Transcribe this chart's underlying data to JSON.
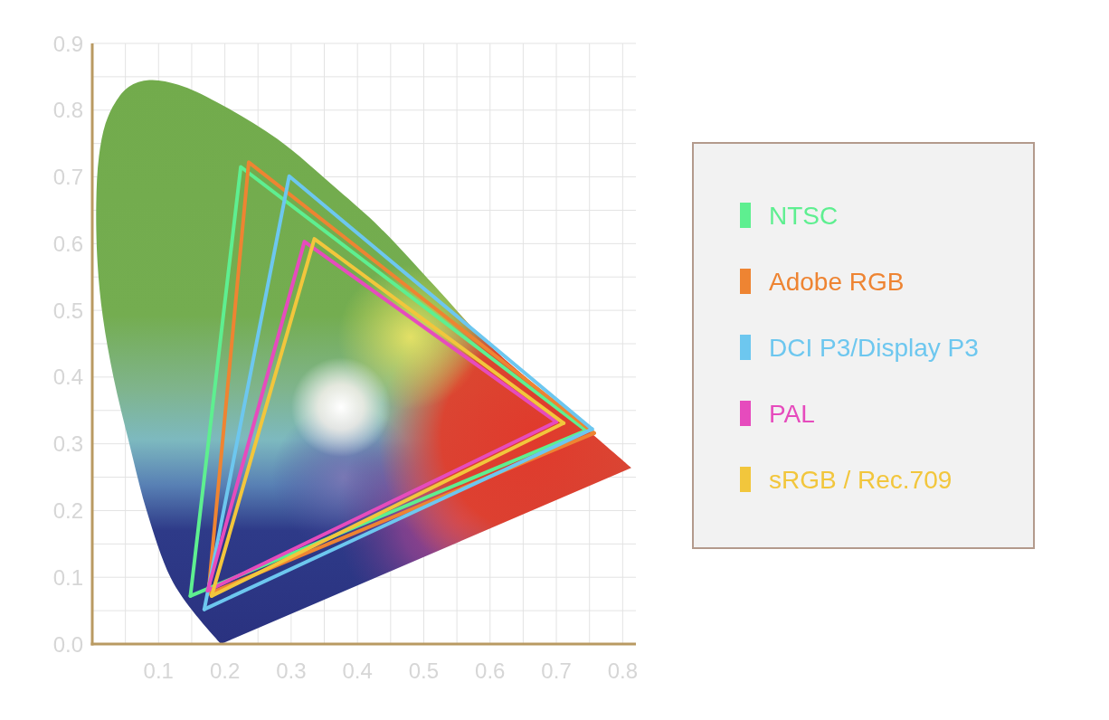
{
  "chart_data": {
    "type": "line",
    "xlim": [
      0,
      0.82
    ],
    "ylim": [
      0,
      0.9
    ],
    "xticks": [
      {
        "value": 0.05,
        "label": null
      },
      0.1,
      {
        "value": 0.15,
        "label": null
      },
      0.2,
      {
        "value": 0.25,
        "label": null
      },
      0.3,
      {
        "value": 0.35,
        "label": null
      },
      0.4,
      {
        "value": 0.45,
        "label": null
      },
      0.5,
      {
        "value": 0.55,
        "label": null
      },
      0.6,
      {
        "value": 0.65,
        "label": null
      },
      0.7,
      {
        "value": 0.75,
        "label": null
      },
      0.8
    ],
    "yticks": [
      {
        "value": 0,
        "label": "0.0"
      },
      {
        "value": 0.05,
        "label": null
      },
      0.1,
      {
        "value": 0.15,
        "label": null
      },
      0.2,
      {
        "value": 0.25,
        "label": null
      },
      0.3,
      {
        "value": 0.35,
        "label": null
      },
      0.4,
      {
        "value": 0.45,
        "label": null
      },
      0.5,
      {
        "value": 0.55,
        "label": null
      },
      0.6,
      {
        "value": 0.65,
        "label": null
      },
      0.7,
      {
        "value": 0.75,
        "label": null
      },
      0.8,
      {
        "value": 0.85,
        "label": null
      },
      0.9
    ],
    "grid": true,
    "legend": "right",
    "series": [
      {
        "type": "area",
        "color": "#72ab4c",
        "x": [
          0.813,
          0.705,
          0.598,
          0.516,
          0.434,
          0.37,
          0.279,
          0.188,
          0.13,
          0.086,
          0.055,
          0.035,
          0.02,
          0.01,
          0.006,
          0.008,
          0.016,
          0.032,
          0.056,
          0.082,
          0.118,
          0.151,
          0.194
        ],
        "values": [
          0.264,
          0.357,
          0.449,
          0.537,
          0.624,
          0.681,
          0.757,
          0.812,
          0.838,
          0.845,
          0.835,
          0.812,
          0.78,
          0.73,
          0.66,
          0.57,
          0.49,
          0.4,
          0.3,
          0.2,
          0.1,
          0.05,
          0.0
        ]
      },
      {
        "name": "NTSC",
        "color": "#5eef90",
        "x": [
          0.148,
          0.224,
          0.745
        ],
        "values": [
          0.072,
          0.715,
          0.32
        ]
      },
      {
        "color": "#5eef90",
        "x": [
          0.148,
          0.745
        ],
        "values": [
          0.072,
          0.32
        ]
      },
      {
        "name": "Adobe RGB",
        "color": "#ee8432",
        "x": [
          0.175,
          0.236,
          0.757
        ],
        "values": [
          0.075,
          0.722,
          0.316
        ]
      },
      {
        "color": "#ee8432",
        "x": [
          0.175,
          0.757
        ],
        "values": [
          0.075,
          0.316
        ]
      },
      {
        "name": "DCI P3/Display P3",
        "color": "#6dc7ef",
        "x": [
          0.169,
          0.297,
          0.754
        ],
        "values": [
          0.052,
          0.701,
          0.322
        ]
      },
      {
        "color": "#6dc7ef",
        "x": [
          0.169,
          0.754
        ],
        "values": [
          0.052,
          0.322
        ]
      },
      {
        "name": "PAL",
        "color": "#e64bbd",
        "x": [
          0.174,
          0.32,
          0.7
        ],
        "values": [
          0.08,
          0.603,
          0.333
        ]
      },
      {
        "color": "#e64bbd",
        "x": [
          0.174,
          0.7
        ],
        "values": [
          0.08,
          0.333
        ]
      },
      {
        "name": "sRGB / Rec.709",
        "color": "#f2c63c",
        "x": [
          0.18,
          0.335,
          0.711
        ],
        "values": [
          0.072,
          0.607,
          0.331
        ]
      },
      {
        "color": "#f2c63c",
        "x": [
          0.18,
          0.711
        ],
        "values": [
          0.072,
          0.331
        ]
      }
    ]
  }
}
